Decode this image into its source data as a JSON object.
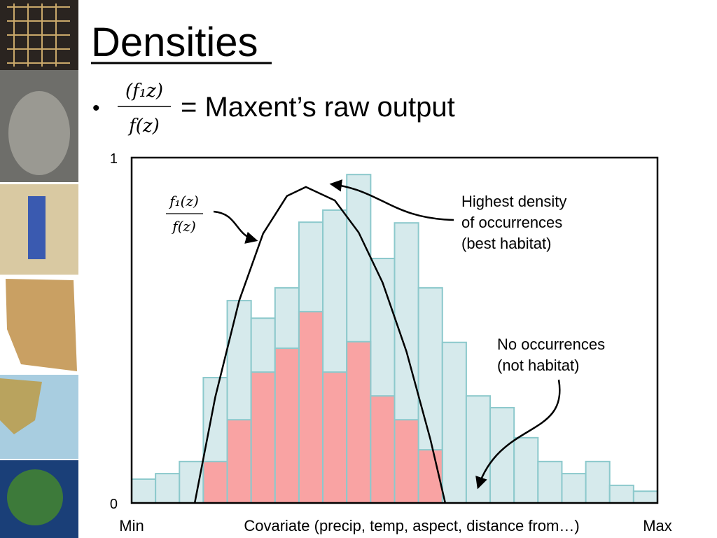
{
  "title": "Densities",
  "bullet": {
    "numerator": "(f₁z)",
    "denominator": "f(z)",
    "text": "= Maxent’s raw output"
  },
  "chart_data": {
    "type": "histogram",
    "xlabel": "Covariate (precip, temp, aspect, distance from…)",
    "bins": [
      0,
      1,
      2,
      3,
      4,
      5,
      6,
      7,
      8,
      9,
      10,
      11,
      12,
      13,
      14,
      15,
      16,
      17,
      18,
      19,
      20,
      21,
      22
    ],
    "series": [
      {
        "color": "#d6eaec",
        "values": [
          0.069,
          0.085,
          0.12,
          0.363,
          0.586,
          0.535,
          0.623,
          0.813,
          0.848,
          0.951,
          0.708,
          0.811,
          0.623,
          0.465,
          0.31,
          0.276,
          0.189,
          0.12,
          0.085,
          0.12,
          0.051,
          0.034
        ]
      },
      {
        "color": "#f9a3a3",
        "values": [
          0,
          0,
          0,
          0.12,
          0.241,
          0.379,
          0.448,
          0.554,
          0.379,
          0.467,
          0.31,
          0.241,
          0.154,
          0,
          0,
          0,
          0,
          0,
          0,
          0,
          0,
          0
        ]
      }
    ],
    "curve": {
      "color": "#000000",
      "x": [
        2.64,
        3.5,
        4.5,
        5.5,
        6.5,
        7.29,
        8.5,
        9.5,
        10.5,
        11.5,
        12.5,
        13.12
      ],
      "values": [
        0,
        0.307,
        0.586,
        0.78,
        0.889,
        0.915,
        0.876,
        0.783,
        0.638,
        0.438,
        0.184,
        0
      ]
    },
    "xlim": [
      0,
      22
    ],
    "xticks": [
      {
        "value": 0,
        "label": "Min"
      },
      {
        "value": 22,
        "label": "Max"
      }
    ],
    "ylim": [
      0,
      1
    ],
    "yticks": [
      0,
      1
    ],
    "annotations": {
      "ratio": {
        "numerator": "f₁(z)",
        "denominator": "f(z)"
      },
      "highest": [
        "Highest density",
        "of occurrences",
        "(best habitat)"
      ],
      "none": [
        "No occurrences",
        "(not habitat)"
      ]
    }
  }
}
